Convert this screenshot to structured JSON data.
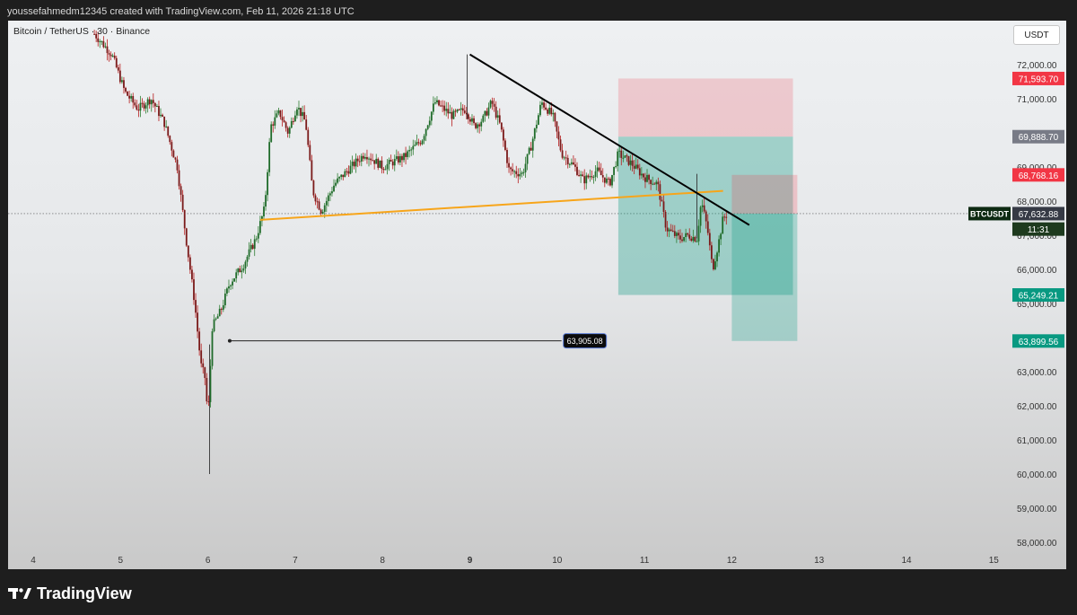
{
  "header": {
    "credit": "youssefahmedm12345 created with TradingView.com, Feb 11, 2026 21:18 UTC"
  },
  "symbol": {
    "label": "Bitcoin / TetherUS · 30 · Binance"
  },
  "currency_button": "USDT",
  "footer": {
    "logo_text": "TradingView"
  },
  "chart_data": {
    "type": "candlestick",
    "x_ticks": [
      "4",
      "5",
      "6",
      "7",
      "8",
      "9",
      "10",
      "11",
      "12",
      "13",
      "14",
      "15"
    ],
    "y_ticks": [
      "72,000.00",
      "71,000.00",
      "70,000.00",
      "69,000.00",
      "68,000.00",
      "67,000.00",
      "66,000.00",
      "65,000.00",
      "64,000.00",
      "63,000.00",
      "62,000.00",
      "61,000.00",
      "60,000.00",
      "59,000.00",
      "58,000.00"
    ],
    "ylim": [
      57600,
      73200
    ],
    "price_path": [
      [
        4.7,
        72900
      ],
      [
        4.9,
        72300
      ],
      [
        5.05,
        71200
      ],
      [
        5.2,
        70700
      ],
      [
        5.35,
        71000
      ],
      [
        5.5,
        70300
      ],
      [
        5.65,
        69000
      ],
      [
        5.75,
        66900
      ],
      [
        5.85,
        65000
      ],
      [
        5.92,
        63200
      ],
      [
        5.97,
        62800
      ],
      [
        6.0,
        61600
      ],
      [
        6.05,
        64300
      ],
      [
        6.15,
        64800
      ],
      [
        6.25,
        65600
      ],
      [
        6.4,
        66100
      ],
      [
        6.55,
        66900
      ],
      [
        6.65,
        67800
      ],
      [
        6.72,
        70200
      ],
      [
        6.82,
        70600
      ],
      [
        6.92,
        70000
      ],
      [
        7.02,
        70800
      ],
      [
        7.12,
        70300
      ],
      [
        7.2,
        68300
      ],
      [
        7.3,
        67700
      ],
      [
        7.45,
        68500
      ],
      [
        7.6,
        68900
      ],
      [
        7.8,
        69400
      ],
      [
        8.0,
        69000
      ],
      [
        8.25,
        69300
      ],
      [
        8.45,
        69800
      ],
      [
        8.6,
        70900
      ],
      [
        8.8,
        70500
      ],
      [
        8.95,
        70700
      ],
      [
        9.05,
        70200
      ],
      [
        9.15,
        70400
      ],
      [
        9.25,
        70900
      ],
      [
        9.35,
        70200
      ],
      [
        9.45,
        68900
      ],
      [
        9.6,
        68800
      ],
      [
        9.7,
        69600
      ],
      [
        9.82,
        70900
      ],
      [
        9.95,
        70500
      ],
      [
        10.05,
        69400
      ],
      [
        10.2,
        69000
      ],
      [
        10.3,
        68600
      ],
      [
        10.45,
        68900
      ],
      [
        10.6,
        68500
      ],
      [
        10.7,
        69400
      ],
      [
        10.85,
        69100
      ],
      [
        11.0,
        68700
      ],
      [
        11.15,
        68500
      ],
      [
        11.25,
        67200
      ],
      [
        11.4,
        66900
      ],
      [
        11.5,
        67000
      ],
      [
        11.6,
        66900
      ],
      [
        11.65,
        68000
      ],
      [
        11.72,
        67200
      ],
      [
        11.78,
        66000
      ],
      [
        11.85,
        66800
      ],
      [
        11.9,
        67500
      ],
      [
        11.95,
        67630
      ]
    ],
    "annotations": {
      "trendline_black": {
        "from": [
          9.0,
          72300
        ],
        "to": [
          12.2,
          67300
        ]
      },
      "trendline_orange": {
        "from": [
          6.6,
          67450
        ],
        "to": [
          11.9,
          68300
        ]
      },
      "horizontal_line": {
        "from_x": 6.25,
        "to_x": 10.05,
        "price": 63905.08,
        "label": "63,905.08"
      },
      "position_1": {
        "x_start": 10.7,
        "x_end": 12.7,
        "stop": 71593.7,
        "entry": 69888.7,
        "target": 65249.21
      },
      "position_2": {
        "x_start": 12.0,
        "x_end": 12.75,
        "stop": 68768.16,
        "entry": 67632.88,
        "target": 63899.56
      },
      "current_price_line": 67632.88
    },
    "price_labels": [
      {
        "text": "71,593.70",
        "price": 71593.7,
        "color": "#f23645"
      },
      {
        "text": "69,888.70",
        "price": 69888.7,
        "color": "#787b86"
      },
      {
        "text": "68,768.16",
        "price": 68768.16,
        "color": "#f23645"
      },
      {
        "text": "67,632.88",
        "price": 67632.88,
        "color": "#363a45"
      },
      {
        "text": "11:31",
        "price": 67180,
        "color": "#1e3a1e"
      },
      {
        "text": "65,249.21",
        "price": 65249.21,
        "color": "#089981"
      },
      {
        "text": "63,899.56",
        "price": 63899.56,
        "color": "#089981"
      }
    ],
    "symbol_tag": "BTCUSDT",
    "colors": {
      "up": "#089981",
      "down": "#f23645",
      "candle_body": "#1f6b2a",
      "orange": "#f7a51a"
    }
  }
}
